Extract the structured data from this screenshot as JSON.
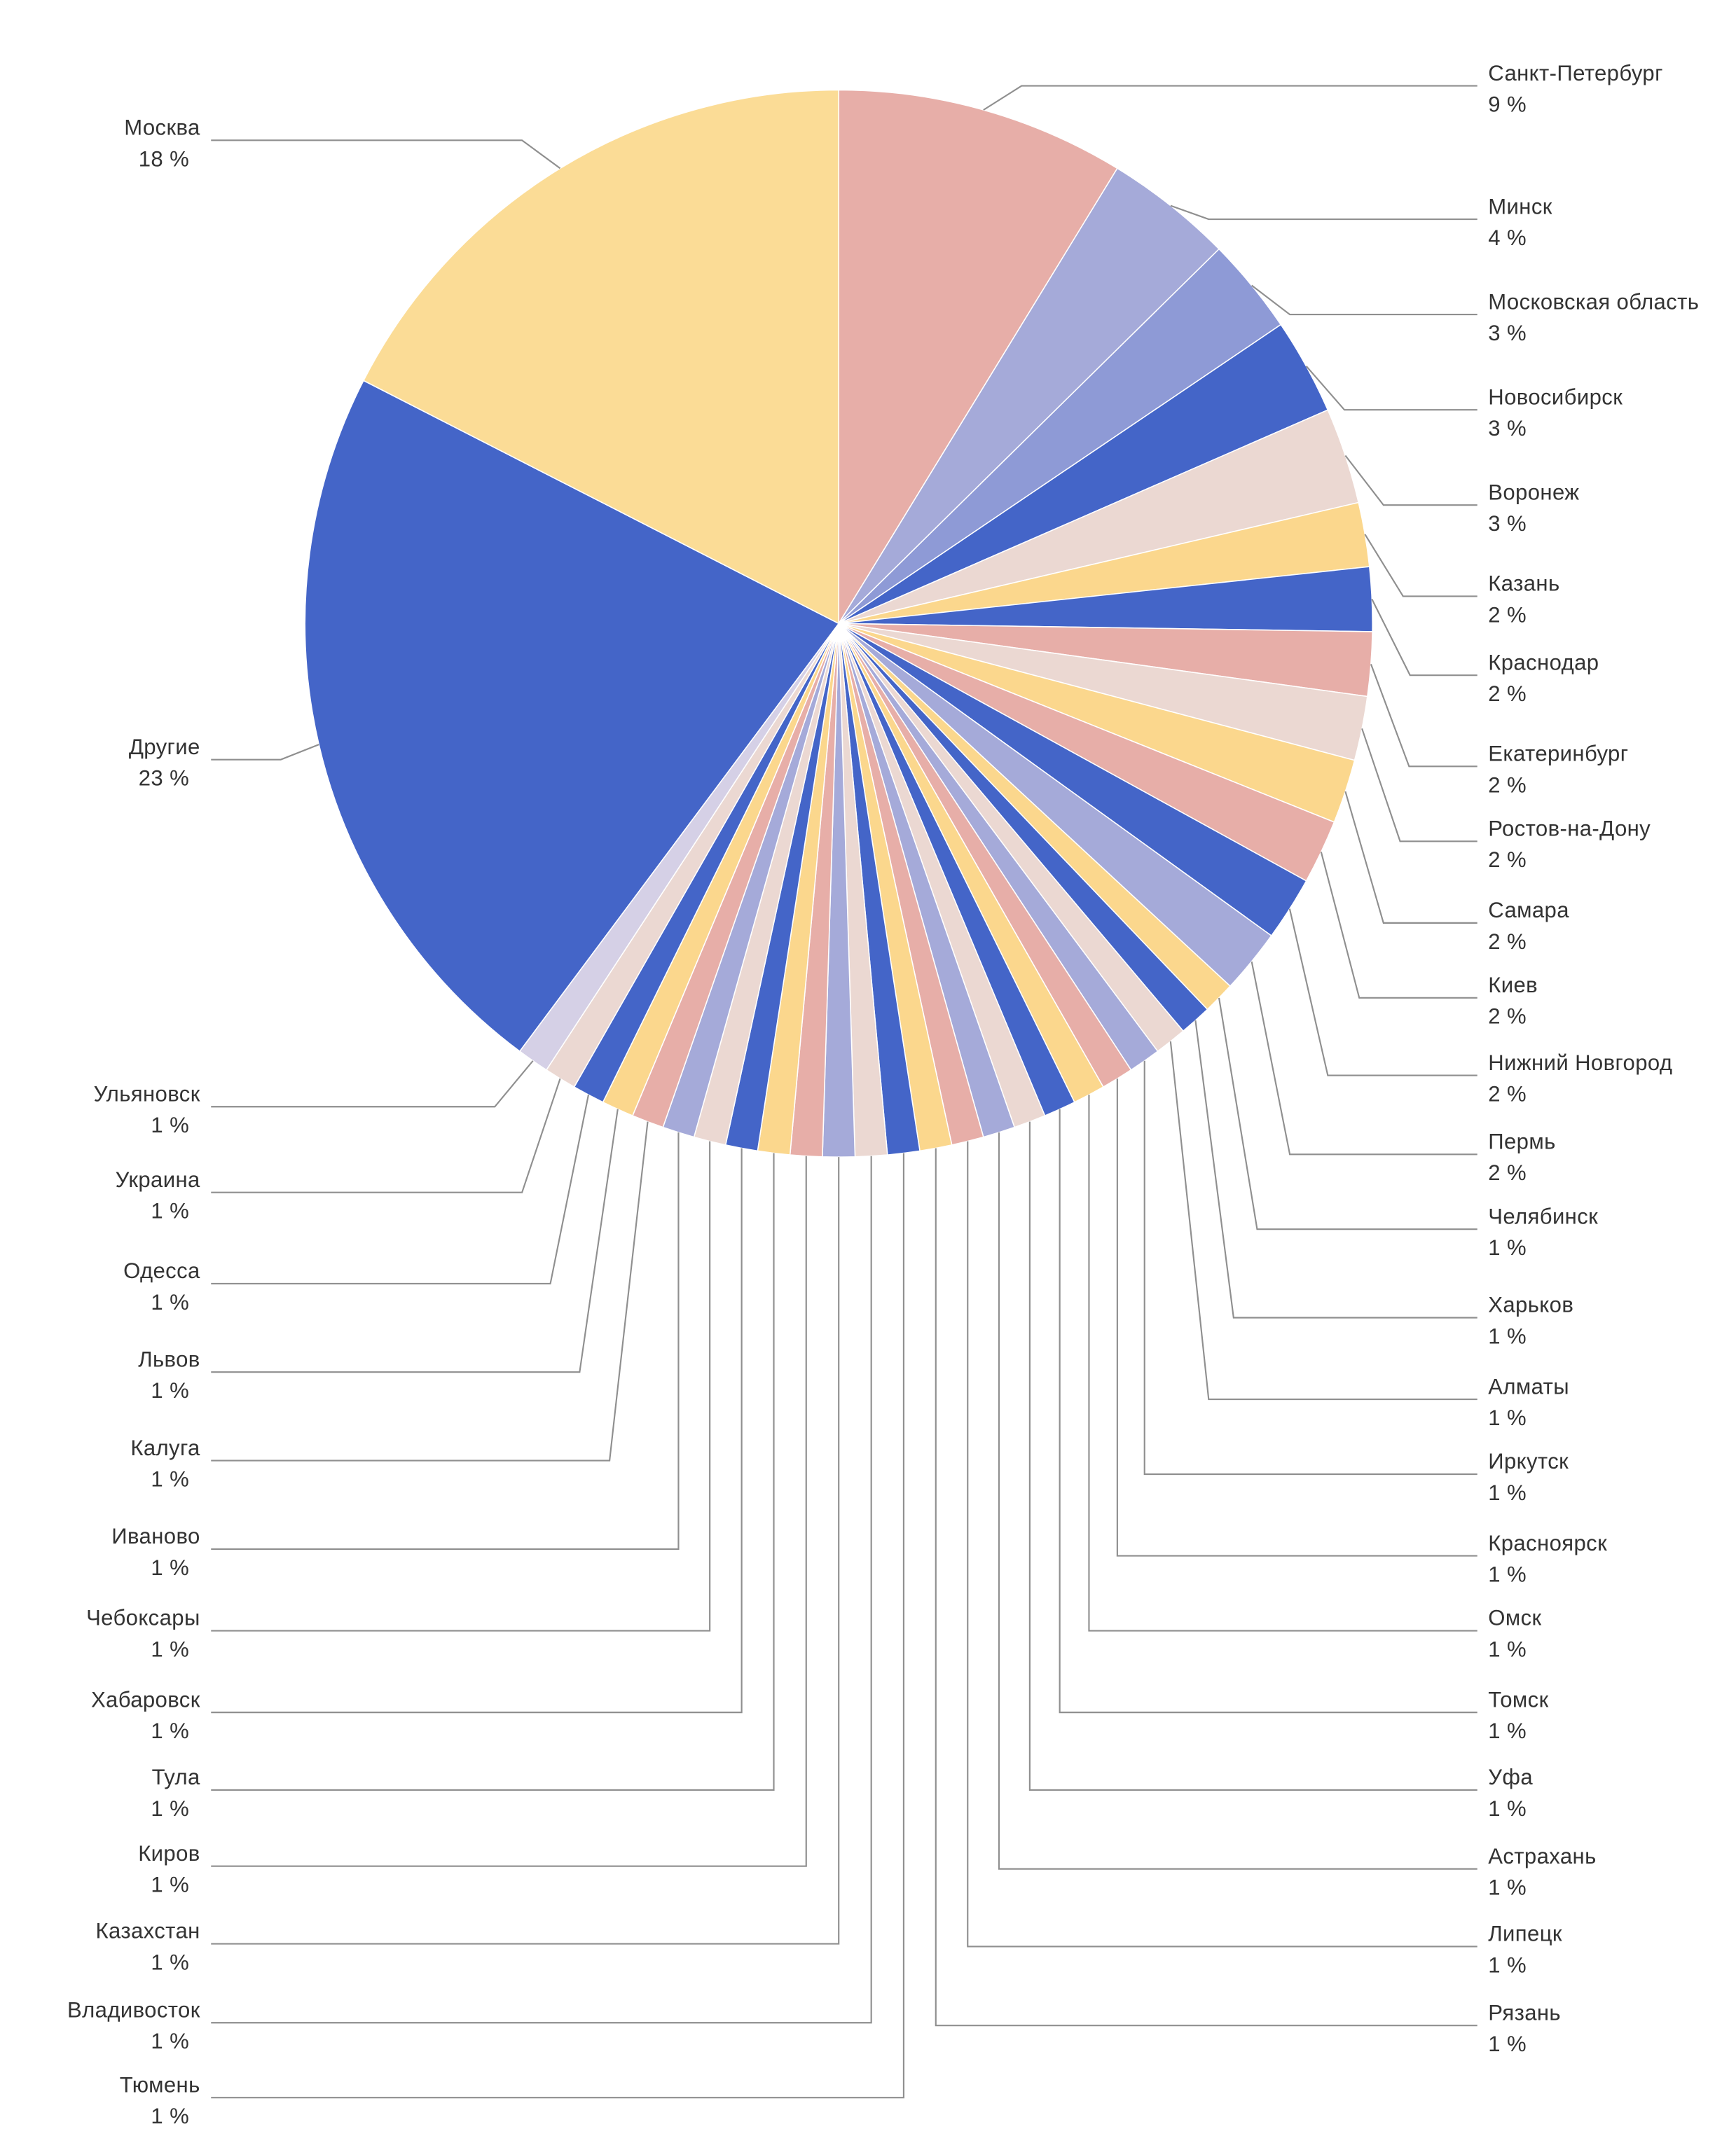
{
  "chart_data": {
    "type": "pie",
    "title": "",
    "legend_position": "callout-labels-both-sides",
    "value_unit": "%",
    "line_color": "#8f8f8f",
    "text_color": "#333333",
    "slice_border_color": "#ffffff",
    "slices": [
      {
        "label": "Санкт-Петербург",
        "value": 9,
        "percent_label": "9 %",
        "color": "#E7AEA8",
        "side": "right"
      },
      {
        "label": "Минск",
        "value": 4,
        "percent_label": "4 %",
        "color": "#A5AAD9",
        "side": "right"
      },
      {
        "label": "Московская область",
        "value": 3,
        "percent_label": "3 %",
        "color": "#8E9AD6",
        "side": "right"
      },
      {
        "label": "Новосибирск",
        "value": 3,
        "percent_label": "3 %",
        "color": "#4465C8",
        "side": "right"
      },
      {
        "label": "Воронеж",
        "value": 3,
        "percent_label": "3 %",
        "color": "#EBD8D2",
        "side": "right"
      },
      {
        "label": "Казань",
        "value": 2,
        "percent_label": "2 %",
        "color": "#FBD78D",
        "side": "right"
      },
      {
        "label": "Краснодар",
        "value": 2,
        "percent_label": "2 %",
        "color": "#4465C8",
        "side": "right"
      },
      {
        "label": "Екатеринбург",
        "value": 2,
        "percent_label": "2 %",
        "color": "#E7AEA8",
        "side": "right"
      },
      {
        "label": "Ростов-на-Дону",
        "value": 2,
        "percent_label": "2 %",
        "color": "#EBD8D2",
        "side": "right"
      },
      {
        "label": "Самара",
        "value": 2,
        "percent_label": "2 %",
        "color": "#FBD78D",
        "side": "right"
      },
      {
        "label": "Киев",
        "value": 2,
        "percent_label": "2 %",
        "color": "#E7AEA8",
        "side": "right"
      },
      {
        "label": "Нижний Новгород",
        "value": 2,
        "percent_label": "2 %",
        "color": "#4465C8",
        "side": "right"
      },
      {
        "label": "Пермь",
        "value": 2,
        "percent_label": "2 %",
        "color": "#A5AAD9",
        "side": "right"
      },
      {
        "label": "Челябинск",
        "value": 1,
        "percent_label": "1 %",
        "color": "#FBD78D",
        "side": "right"
      },
      {
        "label": "Харьков",
        "value": 1,
        "percent_label": "1 %",
        "color": "#4465C8",
        "side": "right"
      },
      {
        "label": "Алматы",
        "value": 1,
        "percent_label": "1 %",
        "color": "#EBD8D2",
        "side": "right"
      },
      {
        "label": "Иркутск",
        "value": 1,
        "percent_label": "1 %",
        "color": "#A5AAD9",
        "side": "right"
      },
      {
        "label": "Красноярск",
        "value": 1,
        "percent_label": "1 %",
        "color": "#E7AEA8",
        "side": "right"
      },
      {
        "label": "Омск",
        "value": 1,
        "percent_label": "1 %",
        "color": "#FBD78D",
        "side": "right"
      },
      {
        "label": "Томск",
        "value": 1,
        "percent_label": "1 %",
        "color": "#4465C8",
        "side": "right"
      },
      {
        "label": "Уфа",
        "value": 1,
        "percent_label": "1 %",
        "color": "#EBD8D2",
        "side": "right"
      },
      {
        "label": "Астрахань",
        "value": 1,
        "percent_label": "1 %",
        "color": "#A5AAD9",
        "side": "right"
      },
      {
        "label": "Липецк",
        "value": 1,
        "percent_label": "1 %",
        "color": "#E7AEA8",
        "side": "right"
      },
      {
        "label": "Рязань",
        "value": 1,
        "percent_label": "1 %",
        "color": "#FBD78D",
        "side": "right"
      },
      {
        "label": "Тюмень",
        "value": 1,
        "percent_label": "1 %",
        "color": "#4465C8",
        "side": "left"
      },
      {
        "label": "Владивосток",
        "value": 1,
        "percent_label": "1 %",
        "color": "#EBD8D2",
        "side": "left"
      },
      {
        "label": "Казахстан",
        "value": 1,
        "percent_label": "1 %",
        "color": "#A5AAD9",
        "side": "left"
      },
      {
        "label": "Киров",
        "value": 1,
        "percent_label": "1 %",
        "color": "#E7AEA8",
        "side": "left"
      },
      {
        "label": "Тула",
        "value": 1,
        "percent_label": "1 %",
        "color": "#FBD78D",
        "side": "left"
      },
      {
        "label": "Хабаровск",
        "value": 1,
        "percent_label": "1 %",
        "color": "#4465C8",
        "side": "left"
      },
      {
        "label": "Чебоксары",
        "value": 1,
        "percent_label": "1 %",
        "color": "#EBD8D2",
        "side": "left"
      },
      {
        "label": "Иваново",
        "value": 1,
        "percent_label": "1 %",
        "color": "#A5AAD9",
        "side": "left"
      },
      {
        "label": "Калуга",
        "value": 1,
        "percent_label": "1 %",
        "color": "#E7AEA8",
        "side": "left"
      },
      {
        "label": "Львов",
        "value": 1,
        "percent_label": "1 %",
        "color": "#FBD78D",
        "side": "left"
      },
      {
        "label": "Одесса",
        "value": 1,
        "percent_label": "1 %",
        "color": "#4465C8",
        "side": "left"
      },
      {
        "label": "Украина",
        "value": 1,
        "percent_label": "1 %",
        "color": "#EBD8D2",
        "side": "left"
      },
      {
        "label": "Ульяновск",
        "value": 1,
        "percent_label": "1 %",
        "color": "#D5D0E6",
        "side": "left"
      },
      {
        "label": "Другие",
        "value": 23,
        "percent_label": "23 %",
        "color": "#4465C8",
        "side": "left"
      },
      {
        "label": "Москва",
        "value": 18,
        "percent_label": "18 %",
        "color": "#FBDC96",
        "side": "left"
      }
    ]
  }
}
